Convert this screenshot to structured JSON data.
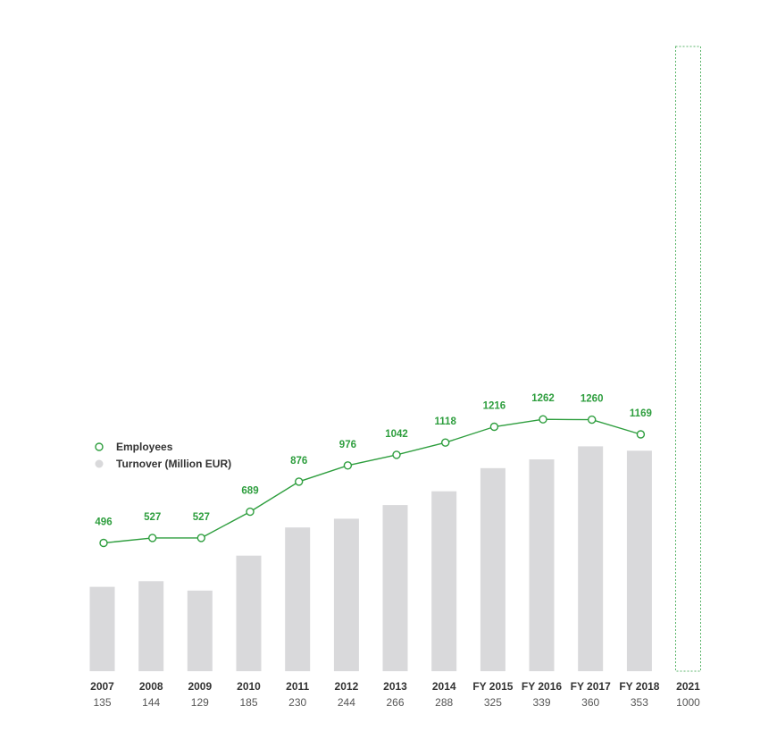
{
  "chart_data": {
    "type": "bar",
    "categories": [
      "2007",
      "2008",
      "2009",
      "2010",
      "2011",
      "2012",
      "2013",
      "2014",
      "FY 2015",
      "FY 2016",
      "FY 2017",
      "FY 2018",
      "2021"
    ],
    "series": [
      {
        "name": "Turnover (Million EUR)",
        "type": "bar",
        "values": [
          135,
          144,
          129,
          185,
          230,
          244,
          266,
          288,
          325,
          339,
          360,
          353,
          1000
        ],
        "labels": [
          "135",
          "144",
          "129",
          "185",
          "230",
          "244",
          "266",
          "288",
          "325",
          "339",
          "360",
          "353",
          "1000"
        ],
        "styles": [
          "solid",
          "solid",
          "solid",
          "solid",
          "solid",
          "solid",
          "solid",
          "solid",
          "solid",
          "solid",
          "solid",
          "solid",
          "dashed-outline"
        ]
      },
      {
        "name": "Employees",
        "type": "line",
        "values": [
          496,
          527,
          527,
          689,
          876,
          976,
          1042,
          1118,
          1216,
          1262,
          1260,
          1169,
          null
        ],
        "labels": [
          "496",
          "527",
          "527",
          "689",
          "876",
          "976",
          "1042",
          "1118",
          "1216",
          "1262",
          "1260",
          "1169",
          ""
        ]
      }
    ],
    "legend": {
      "position": "left",
      "items": [
        "Employees",
        "Turnover (Million EUR)"
      ]
    },
    "turnover_axis_max": 1000,
    "grid": false
  },
  "colors": {
    "bar": "#d9d9db",
    "line": "#2e9e3e",
    "emp_label": "#2e9e3e",
    "dashed_outline": "#5ab56a",
    "legend_bar_dot": "#d9d9db"
  }
}
